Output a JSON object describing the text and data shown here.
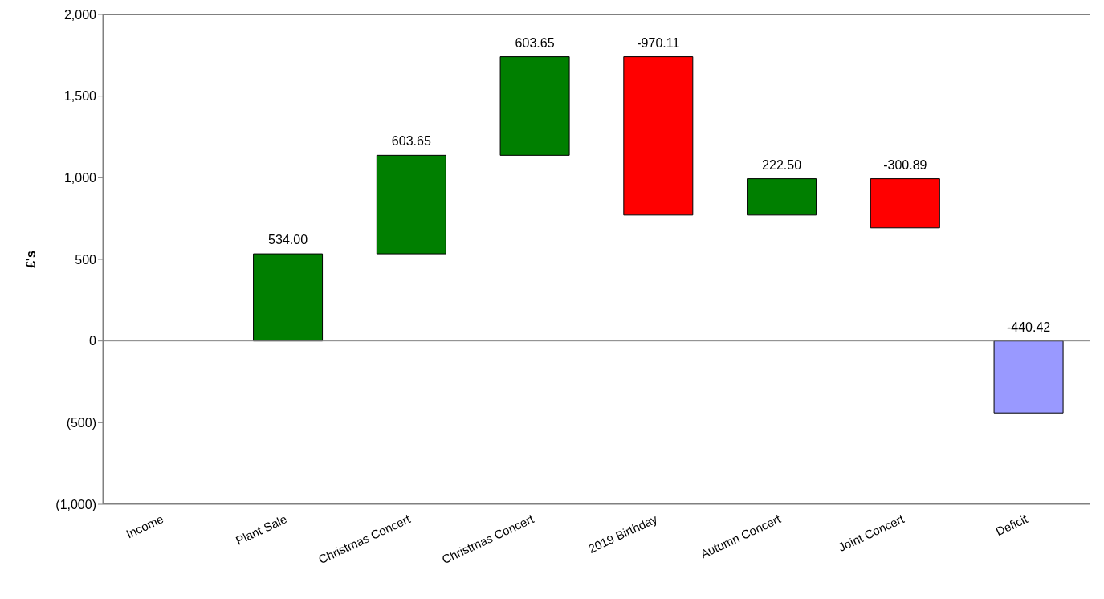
{
  "chart_data": {
    "type": "bar",
    "ylabel": "£'s",
    "categories": [
      "Income",
      "Plant Sale",
      "Christmas Concert",
      "Christmas Concert",
      "2019 Birthday",
      "Autumn Concert",
      "Joint Concert",
      "Deficit"
    ],
    "values": [
      null,
      534,
      603.65,
      603.65,
      -970.11,
      222.5,
      -300.89,
      -440.42
    ],
    "base": [
      null,
      0,
      534,
      1137.65,
      1741.3,
      771.19,
      993.69,
      0
    ],
    "colors": [
      "#007f00",
      "#007f00",
      "#007f00",
      "#007f00",
      "#ff0000",
      "#007f00",
      "#ff0000",
      "#9999ff"
    ],
    "value_labels": [
      null,
      "534.00",
      "603.65",
      "603.65",
      "-970.11",
      "222.50",
      "-300.89",
      "-440.42"
    ],
    "ylim": [
      -1000,
      2000
    ],
    "yticks": [
      {
        "value": -1000,
        "label": "(1,000)"
      },
      {
        "value": -500,
        "label": "(500)"
      },
      0,
      {
        "value": 500,
        "label": "500"
      },
      {
        "value": 1000,
        "label": "1,000"
      },
      {
        "value": 1500,
        "label": "1,500"
      },
      {
        "value": 2000,
        "label": "2,000"
      }
    ],
    "ref_lines": [
      {
        "axis": "y",
        "value": 0,
        "color": "#808080"
      }
    ],
    "grid": false,
    "legend": false
  }
}
